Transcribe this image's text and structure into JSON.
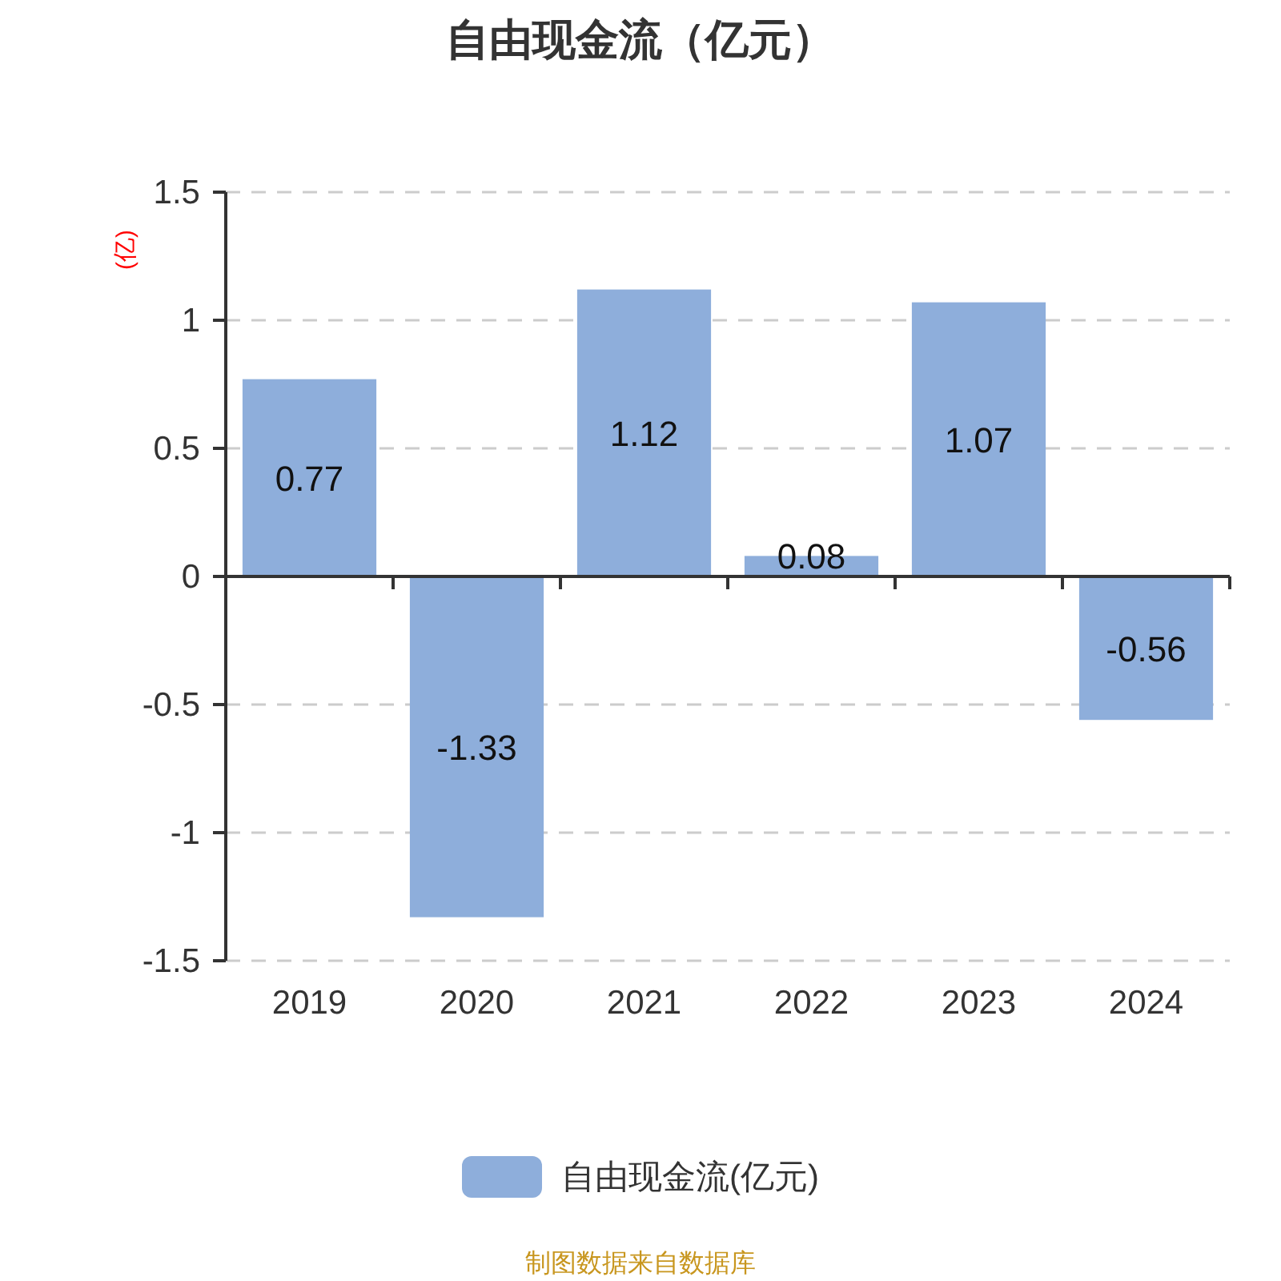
{
  "chart_data": {
    "type": "bar",
    "title": "自由现金流（亿元）",
    "ylabel": "(亿)",
    "categories": [
      "2019",
      "2020",
      "2021",
      "2022",
      "2023",
      "2024"
    ],
    "series": [
      {
        "name": "自由现金流(亿元)",
        "color": "#8eaedb",
        "values": [
          0.77,
          -1.33,
          1.12,
          0.08,
          1.07,
          -0.56
        ]
      }
    ],
    "ylim": [
      -1.5,
      1.5
    ],
    "yticks": [
      -1.5,
      -1,
      -0.5,
      0,
      0.5,
      1,
      1.5
    ],
    "grid": "y",
    "legend": "bottom",
    "data_labels": true,
    "annotations": [
      "制图数据来自数据库"
    ]
  }
}
